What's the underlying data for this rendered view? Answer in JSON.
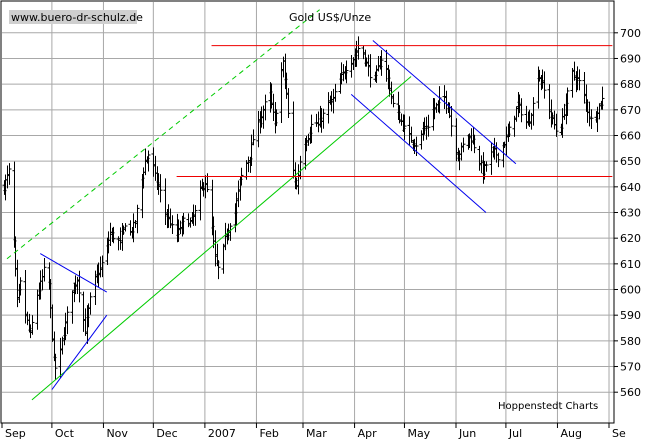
{
  "chart_data": {
    "type": "ohlc",
    "title": "Gold US$/Unze",
    "watermark": "www.buero-dr-schulz.de",
    "source": "Hoppenstedt Charts",
    "ylim": [
      548,
      712
    ],
    "y_ticks": [
      560,
      570,
      580,
      590,
      600,
      610,
      620,
      630,
      640,
      650,
      660,
      670,
      680,
      690,
      700
    ],
    "x_ticks": [
      {
        "label": "Sep",
        "day": 0
      },
      {
        "label": "Oct",
        "day": 30
      },
      {
        "label": "Nov",
        "day": 61
      },
      {
        "label": "Dec",
        "day": 91
      },
      {
        "label": "2007",
        "day": 122
      },
      {
        "label": "Feb",
        "day": 153
      },
      {
        "label": "Mar",
        "day": 181
      },
      {
        "label": "Apr",
        "day": 212
      },
      {
        "label": "May",
        "day": 242
      },
      {
        "label": "Jun",
        "day": 273
      },
      {
        "label": "Jul",
        "day": 303
      },
      {
        "label": "Aug",
        "day": 334
      },
      {
        "label": "Se",
        "day": 365
      }
    ],
    "xlim": [
      0,
      368
    ],
    "anchors": [
      [
        1,
        640
      ],
      [
        4,
        646
      ],
      [
        6,
        630
      ],
      [
        9,
        595
      ],
      [
        12,
        606
      ],
      [
        14,
        590
      ],
      [
        17,
        582
      ],
      [
        20,
        596
      ],
      [
        23,
        602
      ],
      [
        26,
        610
      ],
      [
        28,
        602
      ],
      [
        31,
        572
      ],
      [
        33,
        567
      ],
      [
        36,
        580
      ],
      [
        39,
        590
      ],
      [
        42,
        600
      ],
      [
        45,
        604
      ],
      [
        48,
        592
      ],
      [
        50,
        584
      ],
      [
        53,
        596
      ],
      [
        56,
        604
      ],
      [
        59,
        608
      ],
      [
        62,
        614
      ],
      [
        65,
        622
      ],
      [
        68,
        620
      ],
      [
        71,
        618
      ],
      [
        74,
        626
      ],
      [
        77,
        622
      ],
      [
        80,
        626
      ],
      [
        83,
        640
      ],
      [
        86,
        650
      ],
      [
        89,
        654
      ],
      [
        92,
        644
      ],
      [
        95,
        638
      ],
      [
        98,
        630
      ],
      [
        101,
        626
      ],
      [
        104,
        620
      ],
      [
        107,
        624
      ],
      [
        110,
        628
      ],
      [
        113,
        626
      ],
      [
        116,
        630
      ],
      [
        119,
        638
      ],
      [
        122,
        642
      ],
      [
        125,
        630
      ],
      [
        128,
        612
      ],
      [
        131,
        606
      ],
      [
        134,
        620
      ],
      [
        137,
        626
      ],
      [
        140,
        630
      ],
      [
        143,
        642
      ],
      [
        146,
        648
      ],
      [
        149,
        652
      ],
      [
        152,
        662
      ],
      [
        155,
        666
      ],
      [
        158,
        672
      ],
      [
        161,
        676
      ],
      [
        164,
        664
      ],
      [
        167,
        682
      ],
      [
        169,
        688
      ],
      [
        171,
        676
      ],
      [
        173,
        660
      ],
      [
        175,
        646
      ],
      [
        177,
        640
      ],
      [
        179,
        650
      ],
      [
        181,
        656
      ],
      [
        184,
        660
      ],
      [
        187,
        666
      ],
      [
        190,
        664
      ],
      [
        193,
        668
      ],
      [
        196,
        672
      ],
      [
        199,
        674
      ],
      [
        202,
        680
      ],
      [
        205,
        684
      ],
      [
        208,
        688
      ],
      [
        211,
        690
      ],
      [
        214,
        694
      ],
      [
        217,
        692
      ],
      [
        220,
        686
      ],
      [
        223,
        680
      ],
      [
        226,
        686
      ],
      [
        229,
        692
      ],
      [
        232,
        682
      ],
      [
        235,
        672
      ],
      [
        238,
        668
      ],
      [
        241,
        664
      ],
      [
        244,
        660
      ],
      [
        247,
        658
      ],
      [
        250,
        656
      ],
      [
        253,
        662
      ],
      [
        256,
        664
      ],
      [
        259,
        670
      ],
      [
        262,
        672
      ],
      [
        265,
        676
      ],
      [
        268,
        672
      ],
      [
        271,
        660
      ],
      [
        274,
        652
      ],
      [
        277,
        656
      ],
      [
        280,
        660
      ],
      [
        283,
        658
      ],
      [
        286,
        652
      ],
      [
        289,
        646
      ],
      [
        292,
        650
      ],
      [
        295,
        654
      ],
      [
        298,
        652
      ],
      [
        301,
        656
      ],
      [
        304,
        660
      ],
      [
        307,
        666
      ],
      [
        310,
        672
      ],
      [
        313,
        668
      ],
      [
        316,
        664
      ],
      [
        319,
        672
      ],
      [
        322,
        684
      ],
      [
        325,
        680
      ],
      [
        328,
        672
      ],
      [
        330,
        668
      ],
      [
        332,
        664
      ],
      [
        334,
        660
      ],
      [
        337,
        666
      ],
      [
        340,
        676
      ],
      [
        343,
        684
      ],
      [
        346,
        682
      ],
      [
        349,
        678
      ],
      [
        352,
        670
      ],
      [
        355,
        664
      ],
      [
        358,
        670
      ],
      [
        361,
        674
      ],
      [
        364,
        674
      ]
    ],
    "trendlines": [
      {
        "name": "uptrend-line",
        "color": "#00cc00",
        "dash": false,
        "points": [
          [
            18,
            557
          ],
          [
            246,
            683
          ]
        ]
      },
      {
        "name": "uptrend-parallel-line",
        "color": "#00cc00",
        "dash": true,
        "points": [
          [
            3,
            612
          ],
          [
            191,
            709
          ]
        ]
      },
      {
        "name": "pennant-upper-line",
        "color": "#0000ee",
        "dash": false,
        "points": [
          [
            23,
            614
          ],
          [
            63,
            599
          ]
        ]
      },
      {
        "name": "pennant-lower-line",
        "color": "#0000ee",
        "dash": false,
        "points": [
          [
            30,
            561
          ],
          [
            63,
            590
          ]
        ]
      },
      {
        "name": "resistance-line",
        "color": "#ee0000",
        "dash": false,
        "points": [
          [
            126,
            695
          ],
          [
            367,
            695
          ]
        ]
      },
      {
        "name": "support-line",
        "color": "#ee0000",
        "dash": false,
        "points": [
          [
            105,
            644
          ],
          [
            367,
            644
          ]
        ]
      },
      {
        "name": "down-channel-upper-line",
        "color": "#0000ee",
        "dash": false,
        "points": [
          [
            223,
            697
          ],
          [
            309,
            649
          ]
        ]
      },
      {
        "name": "down-channel-lower-line",
        "color": "#0000ee",
        "dash": false,
        "points": [
          [
            210,
            676
          ],
          [
            291,
            630
          ]
        ]
      }
    ],
    "colors": {
      "price_bars": "#000000",
      "grid": "#a8a8a8",
      "axis": "#000000",
      "background": "#ffffff"
    },
    "grid": true,
    "y_axis_side": "right"
  }
}
